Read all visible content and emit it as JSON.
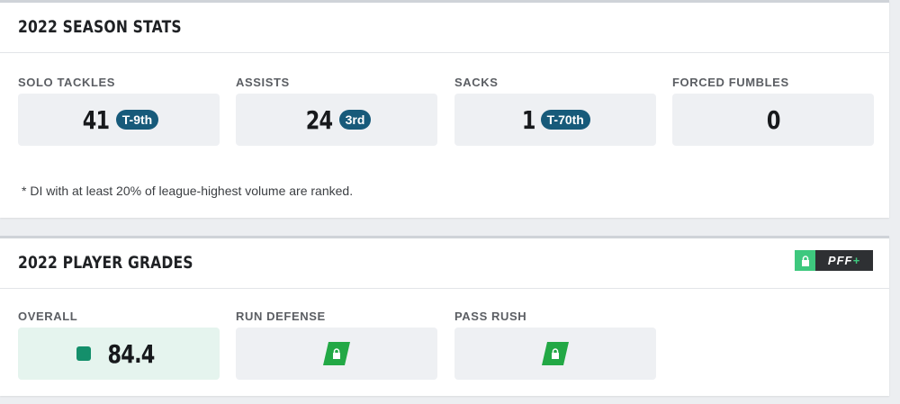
{
  "season_stats": {
    "title": "2022 SEASON STATS",
    "stats": [
      {
        "label": "SOLO TACKLES",
        "value": "41",
        "rank": "T-9th"
      },
      {
        "label": "ASSISTS",
        "value": "24",
        "rank": "3rd"
      },
      {
        "label": "SACKS",
        "value": "1",
        "rank": "T-70th"
      },
      {
        "label": "FORCED FUMBLES",
        "value": "0"
      }
    ],
    "footnote": "* DI with at least 20% of league-highest volume are ranked."
  },
  "player_grades": {
    "title": "2022 PLAYER GRADES",
    "badge": "PFF+",
    "grades": [
      {
        "label": "OVERALL",
        "value": "84.4",
        "color": "#148f6b"
      },
      {
        "label": "RUN DEFENSE",
        "locked": true
      },
      {
        "label": "PASS RUSH",
        "locked": true
      }
    ]
  }
}
